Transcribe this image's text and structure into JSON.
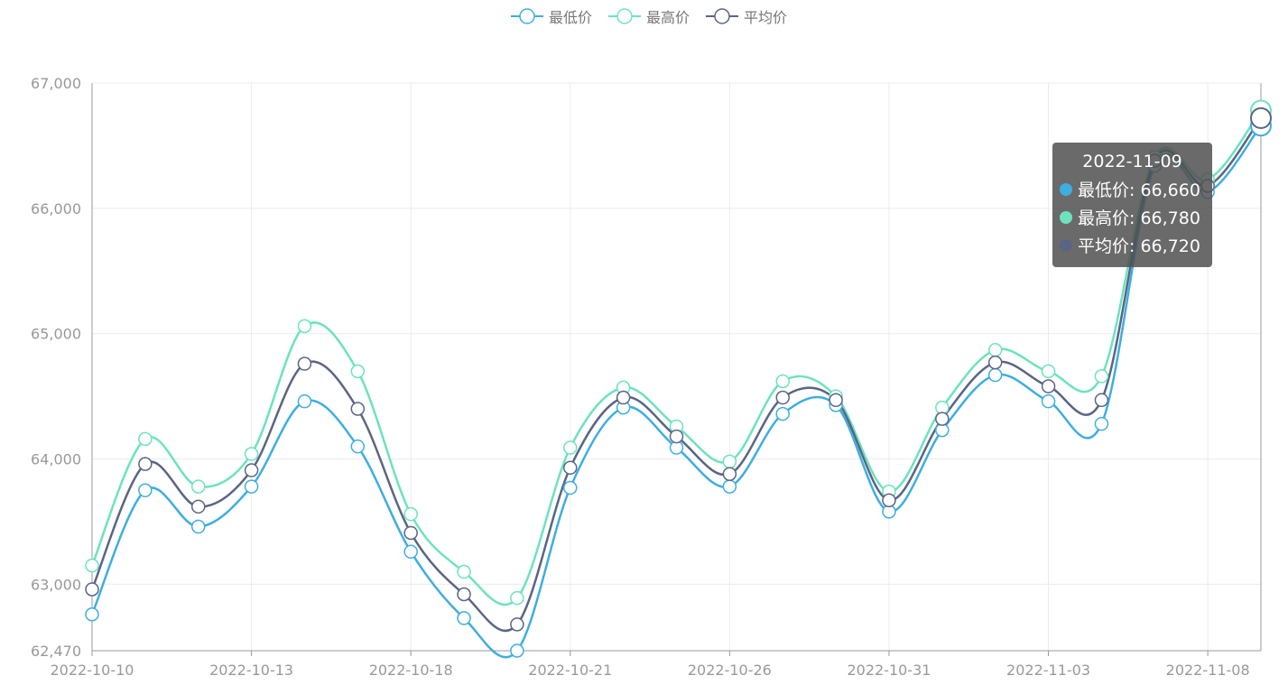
{
  "legend": [
    {
      "name": "最低价",
      "color": "#3eaee0"
    },
    {
      "name": "最高价",
      "color": "#6ce3bd"
    },
    {
      "name": "平均价",
      "color": "#5a6585"
    }
  ],
  "tooltip": {
    "title": "2022-11-09",
    "rows": [
      {
        "label": "最低价: 66,660",
        "color": "#3eaee0"
      },
      {
        "label": "最高价: 66,780",
        "color": "#6ce3bd"
      },
      {
        "label": "平均价: 66,720",
        "color": "#5a6585"
      }
    ]
  },
  "chart_data": {
    "type": "line",
    "x": [
      "2022-10-10",
      "2022-10-11",
      "2022-10-12",
      "2022-10-13",
      "2022-10-14",
      "2022-10-17",
      "2022-10-18",
      "2022-10-19",
      "2022-10-20",
      "2022-10-21",
      "2022-10-24",
      "2022-10-25",
      "2022-10-26",
      "2022-10-27",
      "2022-10-28",
      "2022-10-31",
      "2022-11-01",
      "2022-11-02",
      "2022-11-03",
      "2022-11-04",
      "2022-11-07",
      "2022-11-08",
      "2022-11-09"
    ],
    "xticks": [
      "2022-10-10",
      "2022-10-13",
      "2022-10-18",
      "2022-10-21",
      "2022-10-26",
      "2022-10-31",
      "2022-11-03",
      "2022-11-08"
    ],
    "series": [
      {
        "name": "最低价",
        "color": "#3eaee0",
        "values": [
          62760,
          63750,
          63460,
          63780,
          64460,
          64100,
          63260,
          62730,
          62470,
          63770,
          64410,
          64090,
          63780,
          64360,
          64430,
          63580,
          64230,
          64670,
          64460,
          64280,
          66340,
          66130,
          66660
        ]
      },
      {
        "name": "最高价",
        "color": "#6ce3bd",
        "values": [
          63150,
          64160,
          63780,
          64040,
          65060,
          64700,
          63560,
          63100,
          62890,
          64090,
          64570,
          64260,
          63980,
          64620,
          64500,
          63740,
          64410,
          64870,
          64700,
          64660,
          66410,
          66230,
          66780
        ]
      },
      {
        "name": "平均价",
        "color": "#5a6585",
        "values": [
          62960,
          63960,
          63620,
          63910,
          64760,
          64400,
          63410,
          62920,
          62680,
          63930,
          64490,
          64180,
          63880,
          64490,
          64470,
          63670,
          64320,
          64770,
          64580,
          64470,
          66380,
          66180,
          66720
        ]
      }
    ],
    "yticks": [
      "62,470",
      "63,000",
      "64,000",
      "65,000",
      "66,000",
      "67,000"
    ],
    "ylim": [
      62470,
      67000
    ],
    "ytick_values": [
      62470,
      63000,
      64000,
      65000,
      66000,
      67000
    ],
    "highlight_index": 22,
    "legend_position": "top-center",
    "grid": true
  }
}
